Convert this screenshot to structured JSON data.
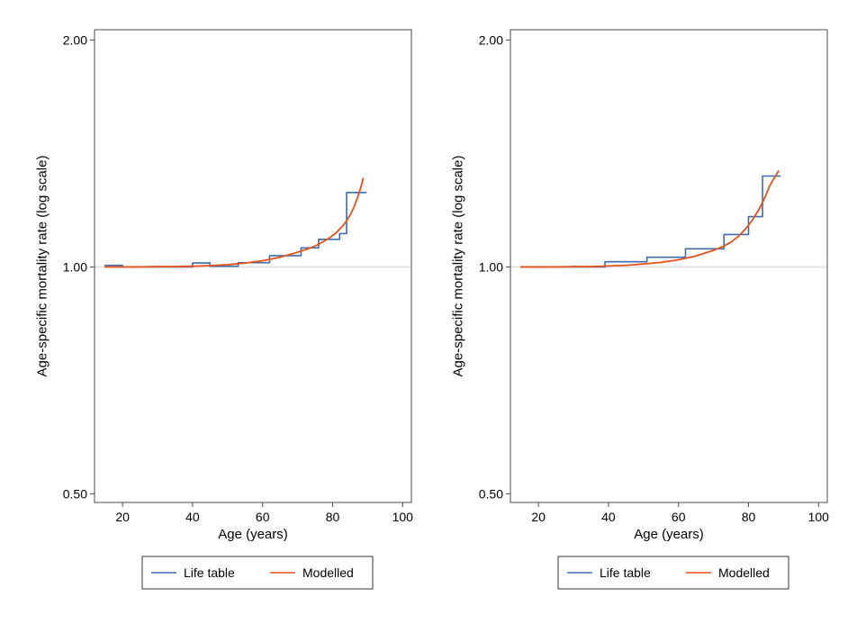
{
  "figure": {
    "background": "#ffffff",
    "panel_count": 2
  },
  "style": {
    "frame_color": "#4a4a4a",
    "reference_line_color": "#e4e4e4",
    "text_color": "#000000",
    "legend_border_color": "#333333",
    "legend_fill": "#ffffff"
  },
  "chart_data": [
    {
      "type": "line",
      "panel": "left",
      "title": "",
      "xlabel": "Age (years)",
      "ylabel": "Age-specific mortality rate (log scale)",
      "x_ticks": [
        20,
        40,
        60,
        80,
        100
      ],
      "y_ticks": [
        {
          "value": 2.0,
          "label": "2.00"
        },
        {
          "value": 1.0,
          "label": "1.00"
        },
        {
          "value": 0.5,
          "label": "0.50"
        }
      ],
      "xlim": [
        12,
        102.5
      ],
      "ylim": [
        0.487,
        2.064
      ],
      "y_scale": "log",
      "grid": false,
      "reference_line_y": 1.0,
      "legend_position": "bottom-center",
      "series": [
        {
          "name": "Life table",
          "style": "step",
          "color": "#3b6cb1",
          "steps": [
            [
              15,
              20,
              1.005
            ],
            [
              20,
              40,
              1.0
            ],
            [
              40,
              45,
              1.012
            ],
            [
              45,
              53,
              1.002
            ],
            [
              53,
              62,
              1.013
            ],
            [
              62,
              71,
              1.035
            ],
            [
              71,
              76,
              1.06
            ],
            [
              76,
              82,
              1.088
            ],
            [
              82,
              84,
              1.107
            ],
            [
              84,
              89.5,
              1.255
            ]
          ]
        },
        {
          "name": "Modelled",
          "style": "smooth",
          "color": "#e8501a",
          "points": [
            [
              15,
              1.0
            ],
            [
              20,
              1.0
            ],
            [
              25,
              1.0
            ],
            [
              30,
              1.001
            ],
            [
              35,
              1.001
            ],
            [
              40,
              1.002
            ],
            [
              45,
              1.004
            ],
            [
              50,
              1.007
            ],
            [
              55,
              1.012
            ],
            [
              60,
              1.019
            ],
            [
              65,
              1.03
            ],
            [
              70,
              1.046
            ],
            [
              73,
              1.057
            ],
            [
              75,
              1.066
            ],
            [
              77,
              1.078
            ],
            [
              79,
              1.092
            ],
            [
              81,
              1.11
            ],
            [
              83,
              1.135
            ],
            [
              84,
              1.152
            ],
            [
              85,
              1.172
            ],
            [
              86,
              1.198
            ],
            [
              87,
              1.232
            ],
            [
              88,
              1.272
            ],
            [
              88.7,
              1.31
            ]
          ]
        }
      ]
    },
    {
      "type": "line",
      "panel": "right",
      "title": "",
      "xlabel": "Age (years)",
      "ylabel": "Age-specific mortality rate (log scale)",
      "x_ticks": [
        20,
        40,
        60,
        80,
        100
      ],
      "y_ticks": [
        {
          "value": 2.0,
          "label": "2.00"
        },
        {
          "value": 1.0,
          "label": "1.00"
        },
        {
          "value": 0.5,
          "label": "0.50"
        }
      ],
      "xlim": [
        12,
        102.5
      ],
      "ylim": [
        0.487,
        2.064
      ],
      "y_scale": "log",
      "grid": false,
      "reference_line_y": 1.0,
      "legend_position": "bottom-center",
      "series": [
        {
          "name": "Life table",
          "style": "step",
          "color": "#3b6cb1",
          "steps": [
            [
              15,
              39,
              1.0
            ],
            [
              39,
              51,
              1.016
            ],
            [
              51,
              62,
              1.03
            ],
            [
              62,
              73,
              1.057
            ],
            [
              73,
              80,
              1.104
            ],
            [
              80,
              84,
              1.166
            ],
            [
              84,
              89,
              1.32
            ]
          ]
        },
        {
          "name": "Modelled",
          "style": "smooth",
          "color": "#e8501a",
          "points": [
            [
              15,
              1.0
            ],
            [
              20,
              1.0
            ],
            [
              25,
              1.0
            ],
            [
              30,
              1.001
            ],
            [
              35,
              1.001
            ],
            [
              40,
              1.003
            ],
            [
              45,
              1.005
            ],
            [
              50,
              1.009
            ],
            [
              55,
              1.014
            ],
            [
              60,
              1.022
            ],
            [
              65,
              1.034
            ],
            [
              70,
              1.052
            ],
            [
              73,
              1.066
            ],
            [
              75,
              1.079
            ],
            [
              77,
              1.097
            ],
            [
              79,
              1.121
            ],
            [
              81,
              1.152
            ],
            [
              83,
              1.193
            ],
            [
              84,
              1.218
            ],
            [
              85,
              1.247
            ],
            [
              86,
              1.28
            ],
            [
              87,
              1.305
            ],
            [
              88,
              1.326
            ],
            [
              88.5,
              1.34
            ]
          ]
        }
      ]
    }
  ]
}
